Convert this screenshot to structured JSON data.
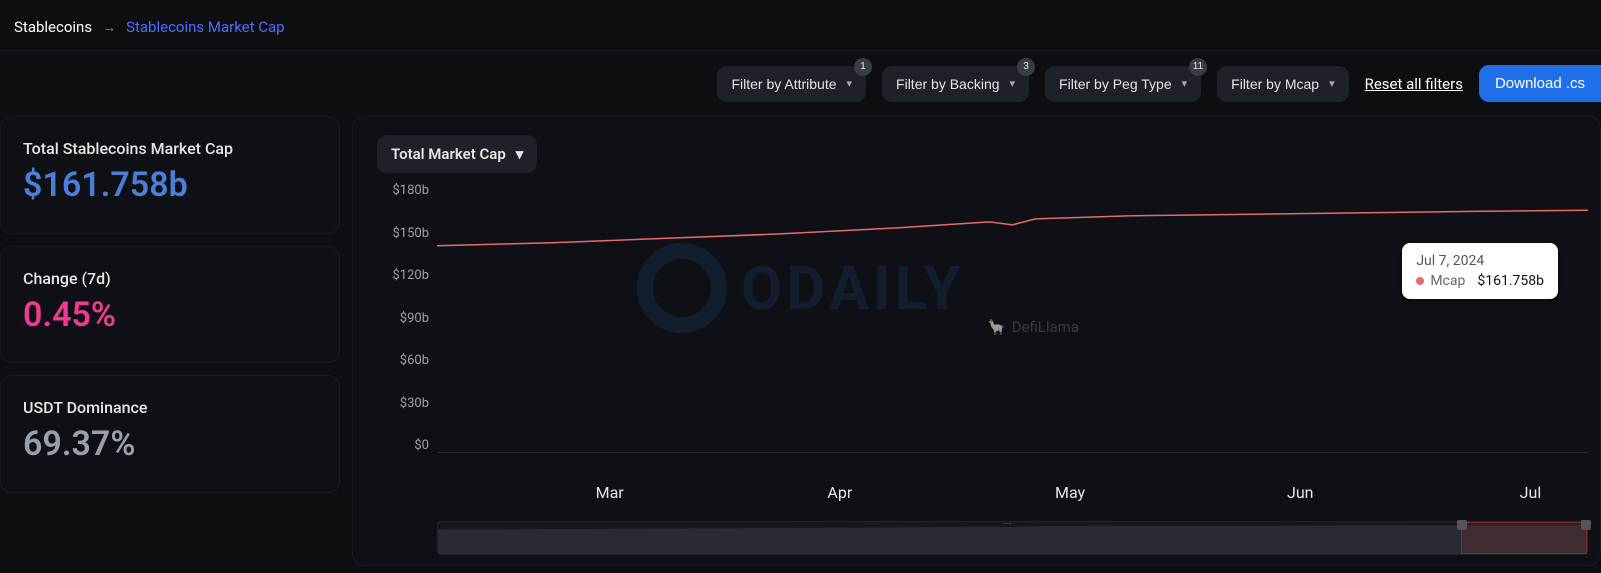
{
  "breadcrumb": {
    "root": "Stablecoins",
    "current": "Stablecoins Market Cap"
  },
  "filters": {
    "attribute": {
      "label": "Filter by Attribute",
      "badge": "1"
    },
    "backing": {
      "label": "Filter by Backing",
      "badge": "3"
    },
    "pegtype": {
      "label": "Filter by Peg Type",
      "badge": "11"
    },
    "mcap": {
      "label": "Filter by Mcap",
      "badge": null
    },
    "reset": "Reset all filters",
    "download": "Download .cs"
  },
  "stats": {
    "total_mcap": {
      "label": "Total Stablecoins Market Cap",
      "value": "$161.758b",
      "color": "#4a7fd8"
    },
    "change_7d": {
      "label": "Change (7d)",
      "value": "0.45%",
      "color": "#ef3a8f"
    },
    "usdt_dom": {
      "label": "USDT Dominance",
      "value": "69.37%",
      "color": "#9aa0aa"
    }
  },
  "chart": {
    "selector_label": "Total Market Cap",
    "type": "line",
    "y_axis": {
      "ticks": [
        "$180b",
        "$150b",
        "$120b",
        "$90b",
        "$60b",
        "$30b",
        "$0"
      ],
      "min": 0,
      "max": 180,
      "step": 30,
      "label_color": "#a0a0a8",
      "fontsize": 13
    },
    "x_axis": {
      "ticks": [
        {
          "label": "Mar",
          "pos": 0.15
        },
        {
          "label": "Apr",
          "pos": 0.35
        },
        {
          "label": "May",
          "pos": 0.55
        },
        {
          "label": "Jun",
          "pos": 0.75
        },
        {
          "label": "Jul",
          "pos": 0.95
        }
      ],
      "label_color": "#a0a0a8",
      "fontsize": 13
    },
    "series": {
      "name": "Mcap",
      "color": "#e56a6a",
      "line_width": 1.5,
      "points": [
        {
          "x": 0.0,
          "y": 138
        },
        {
          "x": 0.1,
          "y": 140
        },
        {
          "x": 0.2,
          "y": 143
        },
        {
          "x": 0.3,
          "y": 146
        },
        {
          "x": 0.4,
          "y": 150
        },
        {
          "x": 0.48,
          "y": 154
        },
        {
          "x": 0.5,
          "y": 152
        },
        {
          "x": 0.52,
          "y": 156
        },
        {
          "x": 0.6,
          "y": 158
        },
        {
          "x": 0.7,
          "y": 159
        },
        {
          "x": 0.8,
          "y": 160
        },
        {
          "x": 0.9,
          "y": 161
        },
        {
          "x": 1.0,
          "y": 161.758
        }
      ]
    },
    "tooltip": {
      "date": "Jul 7, 2024",
      "dot_color": "#e56a6a",
      "label": "Mcap",
      "value": "$161.758b",
      "bg": "#ffffff"
    },
    "brush": {
      "fill": "#2a2b32",
      "selection_start": 0.89,
      "selection_end": 1.0,
      "selection_color": "#7a2f2f"
    },
    "background_color": "#0f1015",
    "grid_color": "#1a1a22"
  },
  "watermarks": {
    "odaily": "ODAILY",
    "defillama": "DefiLlama"
  }
}
